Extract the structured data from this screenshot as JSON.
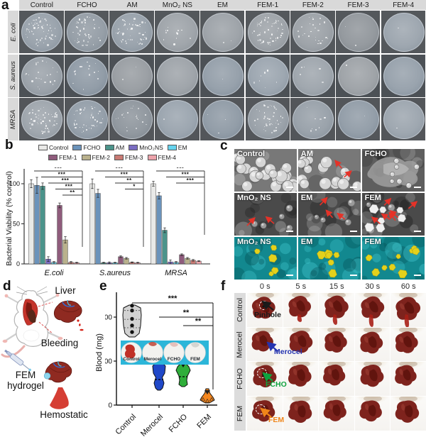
{
  "panels": {
    "a": {
      "letter": "a",
      "columns": [
        "Control",
        "FCHO",
        "AM",
        "MnO₂ NS",
        "EM",
        "FEM-1",
        "FEM-2",
        "FEM-3",
        "FEM-4"
      ],
      "rows": [
        "E. coli",
        "S. aureus",
        "MRSA"
      ],
      "colonies": [
        [
          60,
          45,
          50,
          12,
          2,
          55,
          25,
          2,
          1
        ],
        [
          25,
          15,
          2,
          0,
          1,
          8,
          5,
          1,
          0
        ],
        [
          55,
          45,
          20,
          1,
          3,
          40,
          8,
          1,
          1
        ]
      ]
    },
    "b": {
      "letter": "b"
    },
    "c": {
      "letter": "c",
      "rows": [
        [
          {
            "label": "Control",
            "style": "cocci",
            "spheres": 24,
            "arrows": 0,
            "particles": 0
          },
          {
            "label": "AM",
            "style": "cocci",
            "spheres": 18,
            "arrows": 2,
            "particles": 0
          },
          {
            "label": "FCHO",
            "style": "melt",
            "spheres": 7,
            "arrows": 0,
            "particles": 0
          }
        ],
        [
          {
            "label": "MnO₂ NS",
            "style": "rough",
            "spheres": 5,
            "arrows": 2,
            "particles": 0
          },
          {
            "label": "EM",
            "style": "rough",
            "spheres": 4,
            "arrows": 3,
            "particles": 0
          },
          {
            "label": "FEM",
            "style": "roughp",
            "spheres": 3,
            "arrows": 6,
            "particles": 7
          }
        ],
        [
          {
            "label": "MnO₂ NS",
            "style": "cyan",
            "spheres": 0,
            "arrows": 0,
            "particles": 5
          },
          {
            "label": "EM",
            "style": "cyan",
            "spheres": 0,
            "arrows": 0,
            "particles": 6
          },
          {
            "label": "FEM",
            "style": "cyan",
            "spheres": 0,
            "arrows": 0,
            "particles": 9
          }
        ]
      ]
    },
    "d": {
      "letter": "d",
      "labels": {
        "liver": "Liver",
        "bleeding": "Bleeding",
        "fem_line1": "FEM",
        "fem_line2": "hydrogel",
        "hemostatic": "Hemostatic"
      }
    },
    "e": {
      "letter": "e"
    },
    "f": {
      "letter": "f",
      "times": [
        "0 s",
        "5 s",
        "15 s",
        "30 s",
        "60 s"
      ],
      "rows": [
        "Control",
        "Merocel",
        "FCHO",
        "FEM"
      ],
      "annotations": [
        {
          "text": "Pinhole",
          "color": "#1a1a1a"
        },
        {
          "text": "Merocel",
          "color": "#2433b0"
        },
        {
          "text": "FCHO",
          "color": "#0ea23e"
        },
        {
          "text": "FEM",
          "color": "#f08519"
        }
      ]
    }
  },
  "chart_data": [
    {
      "type": "bar",
      "title": "",
      "xlabel": "",
      "ylabel": "Bacterial Viability (% control)",
      "ylim": [
        0,
        120
      ],
      "yticks": [
        0,
        50,
        100
      ],
      "legend_position": "top",
      "categories": [
        "E.coli",
        "S.aureus",
        "MRSA"
      ],
      "series": [
        {
          "name": "Control",
          "color": "#e9e9e7",
          "values": [
            100,
            100,
            100
          ],
          "errors": [
            5,
            6,
            3
          ]
        },
        {
          "name": "FCHO",
          "color": "#6b93bb",
          "values": [
            98,
            88,
            85
          ],
          "errors": [
            10,
            5,
            4
          ]
        },
        {
          "name": "AM",
          "color": "#4b948b",
          "values": [
            97,
            1.5,
            42
          ],
          "errors": [
            4,
            0.5,
            3
          ]
        },
        {
          "name": "MnO₂NS",
          "color": "#7a6cc2",
          "values": [
            6,
            1.5,
            2.5
          ],
          "errors": [
            3,
            1,
            2.5
          ]
        },
        {
          "name": "EM",
          "color": "#66d4ee",
          "values": [
            2,
            1.5,
            2
          ],
          "errors": [
            1,
            0.5,
            1
          ]
        },
        {
          "name": "FEM-1",
          "color": "#8f5c7c",
          "values": [
            73,
            9,
            11.5
          ],
          "errors": [
            3,
            1,
            1
          ]
        },
        {
          "name": "FEM-2",
          "color": "#b9b18c",
          "values": [
            30,
            7,
            7
          ],
          "errors": [
            4,
            1,
            1
          ]
        },
        {
          "name": "FEM-3",
          "color": "#c97a74",
          "values": [
            2,
            2,
            4.5
          ],
          "errors": [
            1,
            0.5,
            1
          ]
        },
        {
          "name": "FEM-4",
          "color": "#eda3ab",
          "values": [
            1.5,
            1.5,
            3.5
          ],
          "errors": [
            0.5,
            0.5,
            0.5
          ]
        }
      ],
      "significance": [
        {
          "group": "E.coli",
          "stars": [
            "***",
            "***",
            "***",
            "***",
            "**"
          ]
        },
        {
          "group": "S.aureus",
          "stars": [
            "***",
            "***",
            "**",
            "*"
          ]
        },
        {
          "group": "MRSA",
          "stars": [
            "***",
            "***",
            "***"
          ]
        }
      ]
    },
    {
      "type": "violin",
      "title": "",
      "xlabel": "",
      "ylabel": "Blood (mg)",
      "ylim": [
        0,
        250
      ],
      "yticks": [
        0,
        100,
        200
      ],
      "categories": [
        "Control",
        "Merocel",
        "FCHO",
        "FEM"
      ],
      "colors": [
        "#d2d2d2",
        "#2048c8",
        "#2fae3a",
        "#f5871f"
      ],
      "ranges": [
        [
          155,
          232
        ],
        [
          34,
          98
        ],
        [
          42,
          97
        ],
        [
          5,
          38
        ]
      ],
      "medians": [
        196,
        57,
        62,
        14
      ],
      "control_points_mg": [
        226,
        215,
        196,
        181,
        166
      ],
      "significance": [
        {
          "from": "Control",
          "to": "FEM",
          "stars": "***"
        },
        {
          "from": "Merocel",
          "to": "FEM",
          "stars": "**"
        },
        {
          "from": "FCHO",
          "to": "FEM",
          "stars": "**"
        }
      ],
      "inset_labels": [
        "Control",
        "Merocel",
        "FCHO",
        "FEM"
      ]
    }
  ]
}
